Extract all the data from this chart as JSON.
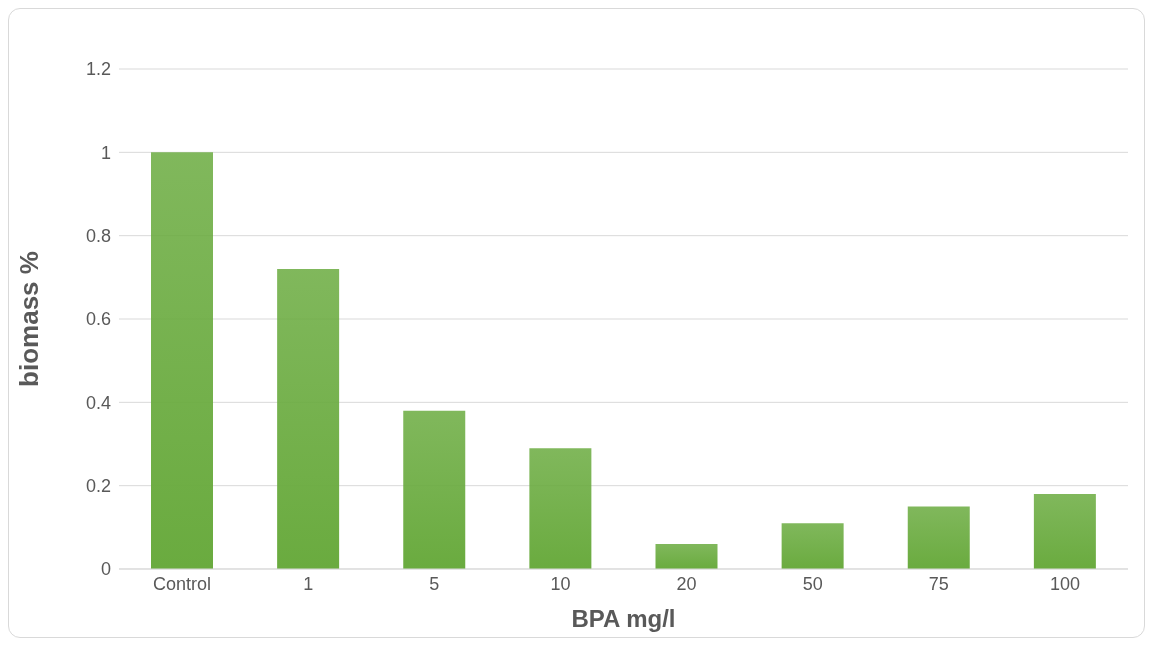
{
  "chart_data": {
    "type": "bar",
    "xlabel": "BPA mg/l",
    "ylabel": "biomass %",
    "categories": [
      "Control",
      "1",
      "5",
      "10",
      "20",
      "50",
      "75",
      "100"
    ],
    "values": [
      1.0,
      0.72,
      0.38,
      0.29,
      0.06,
      0.11,
      0.15,
      0.18
    ],
    "color": "#6aab3f",
    "ylim": [
      0,
      1.2
    ],
    "yticks": [
      0,
      0.2,
      0.4,
      0.6,
      0.8,
      1,
      1.2
    ],
    "grid": "y"
  }
}
